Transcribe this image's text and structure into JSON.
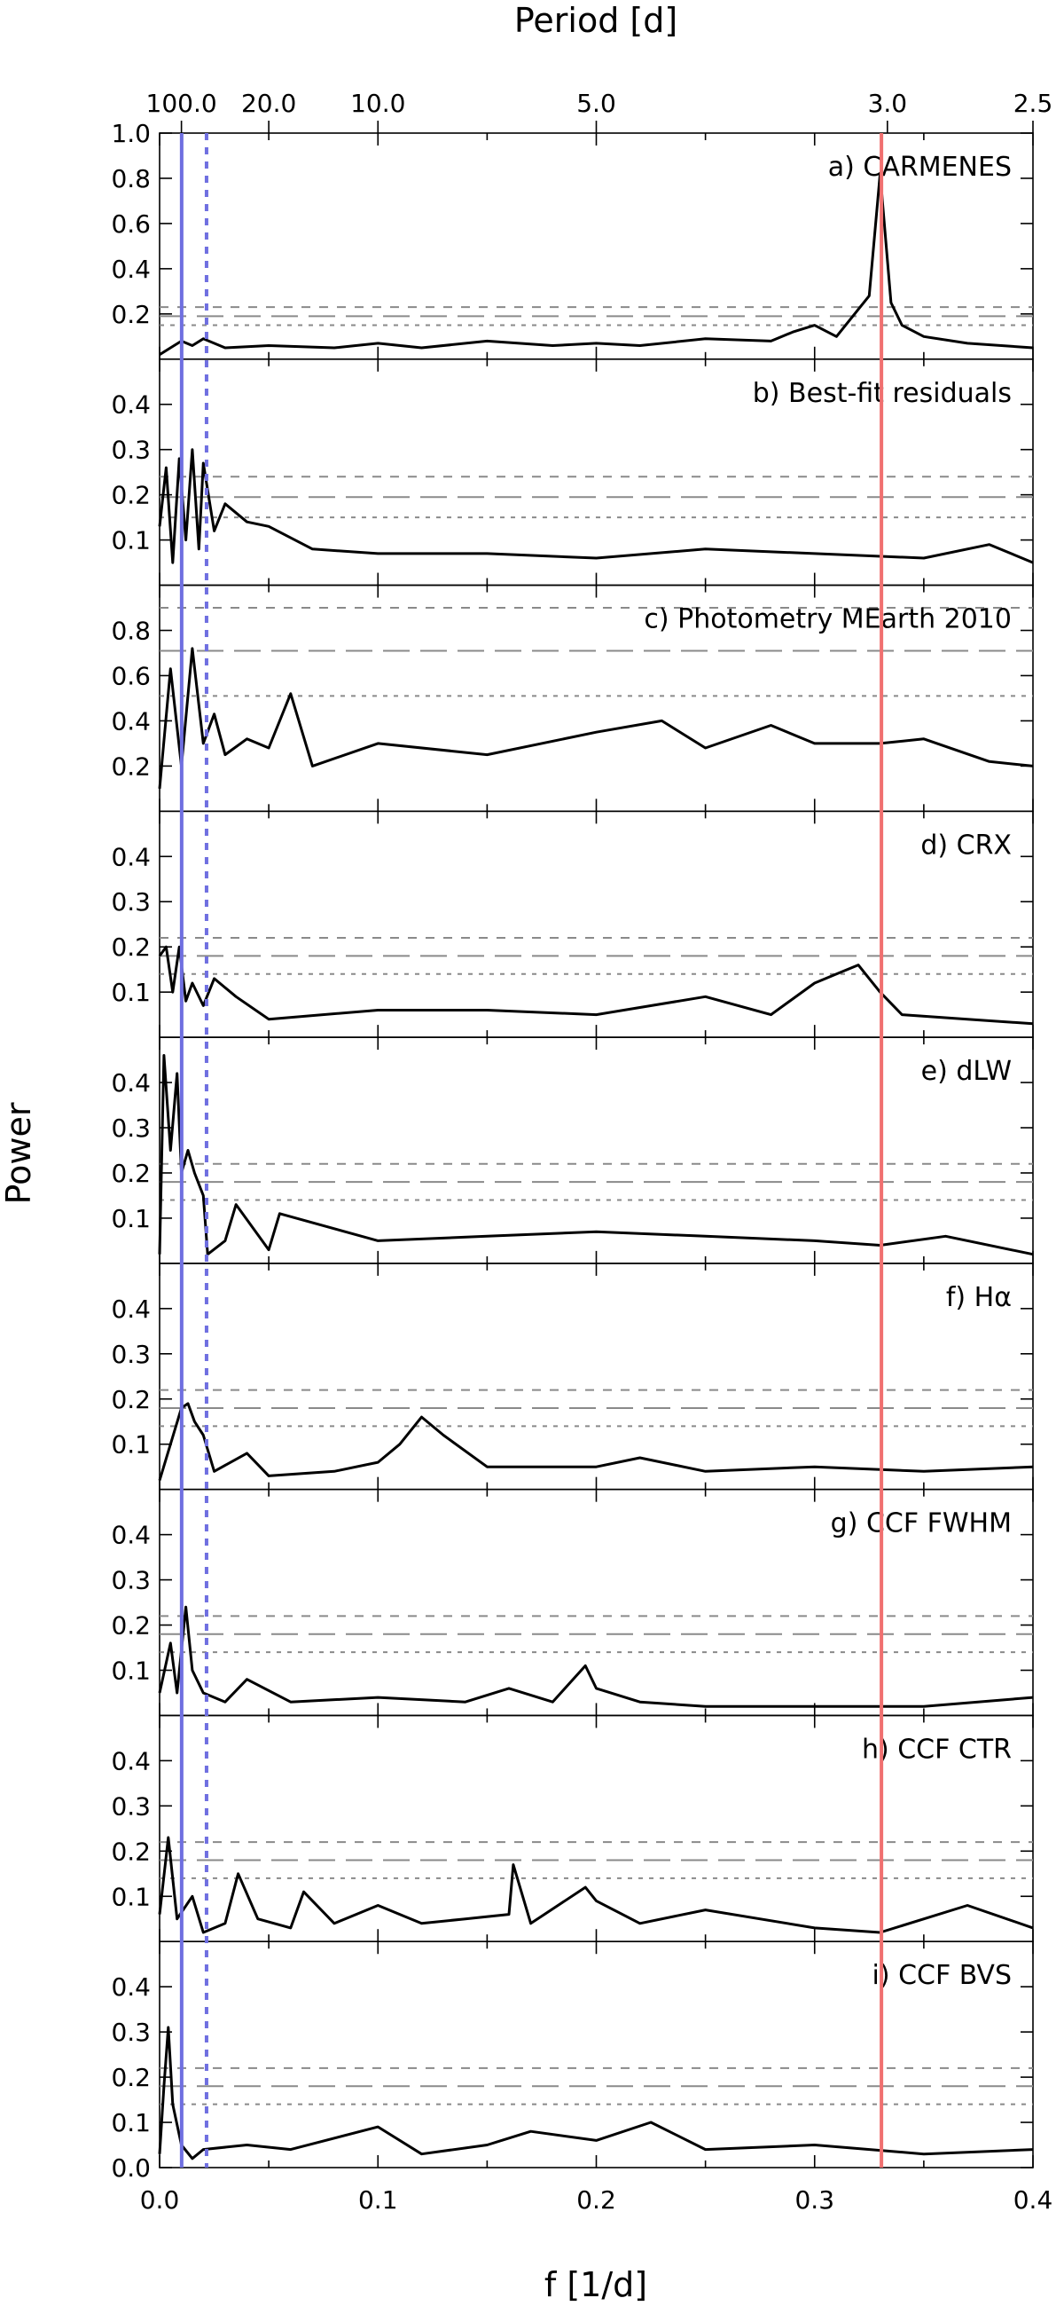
{
  "figure": {
    "top_axis_title": "Period [d]",
    "bottom_axis_title": "f [1/d]",
    "y_axis_title": "Power"
  },
  "chart_data": {
    "type": "line",
    "x_axis": {
      "label": "f [1/d]",
      "xlim": [
        0.0,
        0.4
      ],
      "ticks": [
        0.0,
        0.1,
        0.2,
        0.3,
        0.4
      ],
      "tick_labels": [
        "0.0",
        "0.1",
        "0.2",
        "0.3",
        "0.4"
      ]
    },
    "top_axis": {
      "label": "Period [d]",
      "ticks_period": [
        100.0,
        20.0,
        10.0,
        5.0,
        3.0,
        2.5
      ],
      "tick_labels": [
        "100.0",
        "20.0",
        "10.0",
        "5.0",
        "3.0",
        "2.5"
      ]
    },
    "y_axis": {
      "label": "Power"
    },
    "vertical_markers": [
      {
        "frequency": 0.0101,
        "color": "#6f6fe0",
        "style": "solid"
      },
      {
        "frequency": 0.0215,
        "color": "#6f6fe0",
        "style": "dotted"
      },
      {
        "frequency": 0.3306,
        "color": "#f07070",
        "style": "solid"
      }
    ],
    "panels": [
      {
        "label": "a) CARMENES",
        "ylim": [
          0,
          1.0
        ],
        "yticks": [
          0.2,
          0.4,
          0.6,
          0.8,
          1.0
        ],
        "ytick_labels": [
          "0.2",
          "0.4",
          "0.6",
          "0.8",
          "1.0"
        ],
        "fap_levels": [
          0.23,
          0.19,
          0.15
        ],
        "series": {
          "x": [
            0.0,
            0.005,
            0.01,
            0.015,
            0.02,
            0.03,
            0.05,
            0.08,
            0.1,
            0.12,
            0.15,
            0.18,
            0.2,
            0.22,
            0.25,
            0.28,
            0.29,
            0.3,
            0.31,
            0.32,
            0.325,
            0.33,
            0.335,
            0.34,
            0.35,
            0.37,
            0.4
          ],
          "y": [
            0.02,
            0.05,
            0.08,
            0.06,
            0.09,
            0.05,
            0.06,
            0.05,
            0.07,
            0.05,
            0.08,
            0.06,
            0.07,
            0.06,
            0.09,
            0.08,
            0.12,
            0.15,
            0.1,
            0.22,
            0.28,
            0.82,
            0.25,
            0.15,
            0.1,
            0.07,
            0.05
          ]
        }
      },
      {
        "label": "b) Best-fit residuals",
        "ylim": [
          0,
          0.5
        ],
        "yticks": [
          0.1,
          0.2,
          0.3,
          0.4
        ],
        "ytick_labels": [
          "0.1",
          "0.2",
          "0.3",
          "0.4"
        ],
        "fap_levels": [
          0.24,
          0.195,
          0.15
        ],
        "series": {
          "x": [
            0.0,
            0.003,
            0.006,
            0.009,
            0.012,
            0.015,
            0.018,
            0.02,
            0.025,
            0.03,
            0.04,
            0.05,
            0.07,
            0.1,
            0.15,
            0.2,
            0.25,
            0.3,
            0.35,
            0.38,
            0.4
          ],
          "y": [
            0.13,
            0.26,
            0.05,
            0.28,
            0.1,
            0.3,
            0.08,
            0.27,
            0.12,
            0.18,
            0.14,
            0.13,
            0.08,
            0.07,
            0.07,
            0.06,
            0.08,
            0.07,
            0.06,
            0.09,
            0.05
          ]
        }
      },
      {
        "label": "c) Photometry MEarth 2010",
        "ylim": [
          0,
          1.0
        ],
        "yticks": [
          0.2,
          0.4,
          0.6,
          0.8
        ],
        "ytick_labels": [
          "0.2",
          "0.4",
          "0.6",
          "0.8"
        ],
        "fap_levels": [
          0.9,
          0.71,
          0.51
        ],
        "series": {
          "x": [
            0.0,
            0.005,
            0.01,
            0.015,
            0.02,
            0.025,
            0.03,
            0.04,
            0.05,
            0.06,
            0.07,
            0.1,
            0.15,
            0.2,
            0.23,
            0.25,
            0.28,
            0.3,
            0.33,
            0.35,
            0.38,
            0.4
          ],
          "y": [
            0.1,
            0.63,
            0.2,
            0.72,
            0.3,
            0.43,
            0.25,
            0.32,
            0.28,
            0.52,
            0.2,
            0.3,
            0.25,
            0.35,
            0.4,
            0.28,
            0.38,
            0.3,
            0.3,
            0.32,
            0.22,
            0.2
          ]
        }
      },
      {
        "label": "d) CRX",
        "ylim": [
          0,
          0.5
        ],
        "yticks": [
          0.1,
          0.2,
          0.3,
          0.4
        ],
        "ytick_labels": [
          "0.1",
          "0.2",
          "0.3",
          "0.4"
        ],
        "fap_levels": [
          0.22,
          0.18,
          0.14
        ],
        "series": {
          "x": [
            0.0,
            0.003,
            0.006,
            0.009,
            0.012,
            0.015,
            0.02,
            0.025,
            0.035,
            0.05,
            0.1,
            0.15,
            0.2,
            0.25,
            0.28,
            0.3,
            0.31,
            0.32,
            0.325,
            0.33,
            0.34,
            0.37,
            0.4
          ],
          "y": [
            0.18,
            0.2,
            0.1,
            0.2,
            0.08,
            0.12,
            0.07,
            0.13,
            0.09,
            0.04,
            0.06,
            0.06,
            0.05,
            0.09,
            0.05,
            0.12,
            0.14,
            0.16,
            0.13,
            0.1,
            0.05,
            0.04,
            0.03
          ]
        }
      },
      {
        "label": "e) dLW",
        "ylim": [
          0,
          0.5
        ],
        "yticks": [
          0.1,
          0.2,
          0.3,
          0.4
        ],
        "ytick_labels": [
          "0.1",
          "0.2",
          "0.3",
          "0.4"
        ],
        "fap_levels": [
          0.22,
          0.18,
          0.14
        ],
        "series": {
          "x": [
            0.0,
            0.002,
            0.005,
            0.008,
            0.01,
            0.013,
            0.016,
            0.02,
            0.022,
            0.03,
            0.035,
            0.05,
            0.055,
            0.1,
            0.15,
            0.2,
            0.25,
            0.3,
            0.33,
            0.36,
            0.4
          ],
          "y": [
            0.02,
            0.46,
            0.25,
            0.42,
            0.2,
            0.25,
            0.2,
            0.15,
            0.02,
            0.05,
            0.13,
            0.03,
            0.11,
            0.05,
            0.06,
            0.07,
            0.06,
            0.05,
            0.04,
            0.06,
            0.02
          ]
        }
      },
      {
        "label": "f) Hα",
        "ylim": [
          0,
          0.5
        ],
        "yticks": [
          0.1,
          0.2,
          0.3,
          0.4
        ],
        "ytick_labels": [
          "0.1",
          "0.2",
          "0.3",
          "0.4"
        ],
        "fap_levels": [
          0.22,
          0.18,
          0.14
        ],
        "series": {
          "x": [
            0.0,
            0.005,
            0.01,
            0.013,
            0.016,
            0.02,
            0.025,
            0.04,
            0.05,
            0.08,
            0.1,
            0.11,
            0.12,
            0.13,
            0.15,
            0.2,
            0.22,
            0.25,
            0.3,
            0.35,
            0.4
          ],
          "y": [
            0.02,
            0.1,
            0.18,
            0.19,
            0.15,
            0.12,
            0.04,
            0.08,
            0.03,
            0.04,
            0.06,
            0.1,
            0.16,
            0.12,
            0.05,
            0.05,
            0.07,
            0.04,
            0.05,
            0.04,
            0.05
          ]
        }
      },
      {
        "label": "g) CCF FWHM",
        "ylim": [
          0,
          0.5
        ],
        "yticks": [
          0.1,
          0.2,
          0.3,
          0.4
        ],
        "ytick_labels": [
          "0.1",
          "0.2",
          "0.3",
          "0.4"
        ],
        "fap_levels": [
          0.22,
          0.18,
          0.14
        ],
        "series": {
          "x": [
            0.0,
            0.005,
            0.008,
            0.012,
            0.015,
            0.02,
            0.03,
            0.04,
            0.06,
            0.1,
            0.14,
            0.16,
            0.18,
            0.195,
            0.2,
            0.22,
            0.25,
            0.3,
            0.35,
            0.4
          ],
          "y": [
            0.05,
            0.16,
            0.05,
            0.24,
            0.1,
            0.05,
            0.03,
            0.08,
            0.03,
            0.04,
            0.03,
            0.06,
            0.03,
            0.11,
            0.06,
            0.03,
            0.02,
            0.02,
            0.02,
            0.04
          ]
        }
      },
      {
        "label": "h) CCF CTR",
        "ylim": [
          0,
          0.5
        ],
        "yticks": [
          0.1,
          0.2,
          0.3,
          0.4
        ],
        "ytick_labels": [
          "0.1",
          "0.2",
          "0.3",
          "0.4"
        ],
        "fap_levels": [
          0.22,
          0.18,
          0.14
        ],
        "series": {
          "x": [
            0.0,
            0.004,
            0.008,
            0.015,
            0.02,
            0.03,
            0.036,
            0.045,
            0.06,
            0.066,
            0.08,
            0.1,
            0.12,
            0.14,
            0.16,
            0.162,
            0.17,
            0.195,
            0.2,
            0.22,
            0.25,
            0.3,
            0.33,
            0.37,
            0.4
          ],
          "y": [
            0.06,
            0.23,
            0.05,
            0.1,
            0.02,
            0.04,
            0.15,
            0.05,
            0.03,
            0.11,
            0.04,
            0.08,
            0.04,
            0.05,
            0.06,
            0.17,
            0.04,
            0.12,
            0.09,
            0.04,
            0.07,
            0.03,
            0.02,
            0.08,
            0.03
          ]
        }
      },
      {
        "label": "i) CCF BVS",
        "ylim": [
          0,
          0.5
        ],
        "yticks": [
          0.0,
          0.1,
          0.2,
          0.3,
          0.4
        ],
        "ytick_labels": [
          "0.0",
          "0.1",
          "0.2",
          "0.3",
          "0.4"
        ],
        "fap_levels": [
          0.22,
          0.18,
          0.14
        ],
        "series": {
          "x": [
            0.0,
            0.002,
            0.004,
            0.006,
            0.01,
            0.015,
            0.02,
            0.04,
            0.06,
            0.1,
            0.12,
            0.15,
            0.17,
            0.2,
            0.225,
            0.25,
            0.3,
            0.35,
            0.4
          ],
          "y": [
            0.03,
            0.18,
            0.31,
            0.14,
            0.05,
            0.02,
            0.04,
            0.05,
            0.04,
            0.09,
            0.03,
            0.05,
            0.08,
            0.06,
            0.1,
            0.04,
            0.05,
            0.03,
            0.04
          ]
        }
      }
    ]
  }
}
